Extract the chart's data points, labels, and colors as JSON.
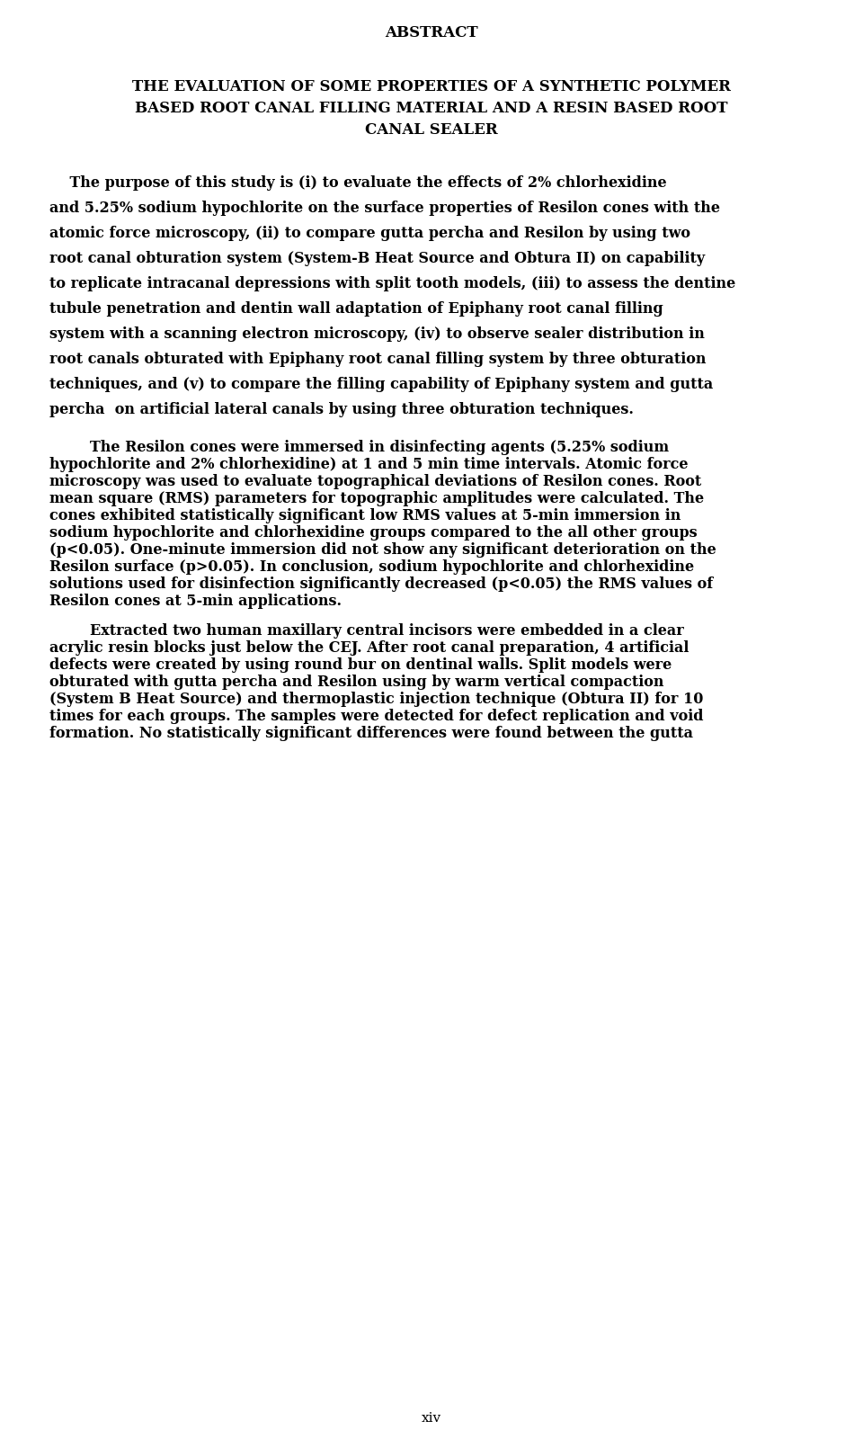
{
  "background_color": "#ffffff",
  "text_color": "#000000",
  "title": "ABSTRACT",
  "subtitle_line1": "THE EVALUATION OF SOME PROPERTIES OF A SYNTHETIC POLYMER",
  "subtitle_line2": "BASED ROOT CANAL FILLING MATERIAL AND A RESIN BASED ROOT",
  "subtitle_line3": "CANAL SEALER",
  "p1_line1": "    The purpose of this study is (i) to evaluate the effects of 2% chlorhexidine",
  "p1_line2": "and 5.25% sodium hypochlorite on the surface properties of Resilon cones with the",
  "p1_line3": "atomic force microscopy, (ii) to compare gutta percha and Resilon by using two",
  "p1_line4": "root canal obturation system (System-B Heat Source and Obtura II) on capability",
  "p1_line5": "to replicate intracanal depressions with split tooth models, (iii) to assess the dentine",
  "p1_line6": "tubule penetration and dentin wall adaptation of Epiphany root canal filling",
  "p1_line7": "system with a scanning electron microscopy, (iv) to observe sealer distribution in",
  "p1_line8": "root canals obturated with Epiphany root canal filling system by three obturation",
  "p1_line9": "techniques, and (v) to compare the filling capability of Epiphany system and gutta",
  "p1_line10": "percha  on artificial lateral canals by using three obturation techniques.",
  "p2_line1": "        The Resilon cones were immersed in disinfecting agents (5.25% sodium",
  "p2_line2": "hypochlorite and 2% chlorhexidine) at 1 and 5 min time intervals. Atomic force",
  "p2_line3": "microscopy was used to evaluate topographical deviations of Resilon cones. Root",
  "p2_line4": "mean square (RMS) parameters for topographic amplitudes were calculated. The",
  "p2_line5": "cones exhibited statistically significant low RMS values at 5-min immersion in",
  "p2_line6": "sodium hypochlorite and chlorhexidine groups compared to the all other groups",
  "p2_line7": "(p<0.05). One-minute immersion did not show any significant deterioration on the",
  "p2_line8": "Resilon surface (p>0.05). In conclusion, sodium hypochlorite and chlorhexidine",
  "p2_line9": "solutions used for disinfection significantly decreased (p<0.05) the RMS values of",
  "p2_line10": "Resilon cones at 5-min applications.",
  "p3_line1": "        Extracted two human maxillary central incisors were embedded in a clear",
  "p3_line2": "acrylic resin blocks just below the CEJ. After root canal preparation, 4 artificial",
  "p3_line3": "defects were created by using round bur on dentinal walls. Split models were",
  "p3_line4": "obturated with gutta percha and Resilon using by warm vertical compaction",
  "p3_line5": "(System B Heat Source) and thermoplastic injection technique (Obtura II) for 10",
  "p3_line6": "times for each groups. The samples were detected for defect replication and void",
  "p3_line7": "formation. No statistically significant differences were found between the gutta",
  "footer": "xiv",
  "title_fontsize": 12,
  "subtitle_fontsize": 12,
  "body_fontsize": 11.5,
  "footer_fontsize": 11
}
